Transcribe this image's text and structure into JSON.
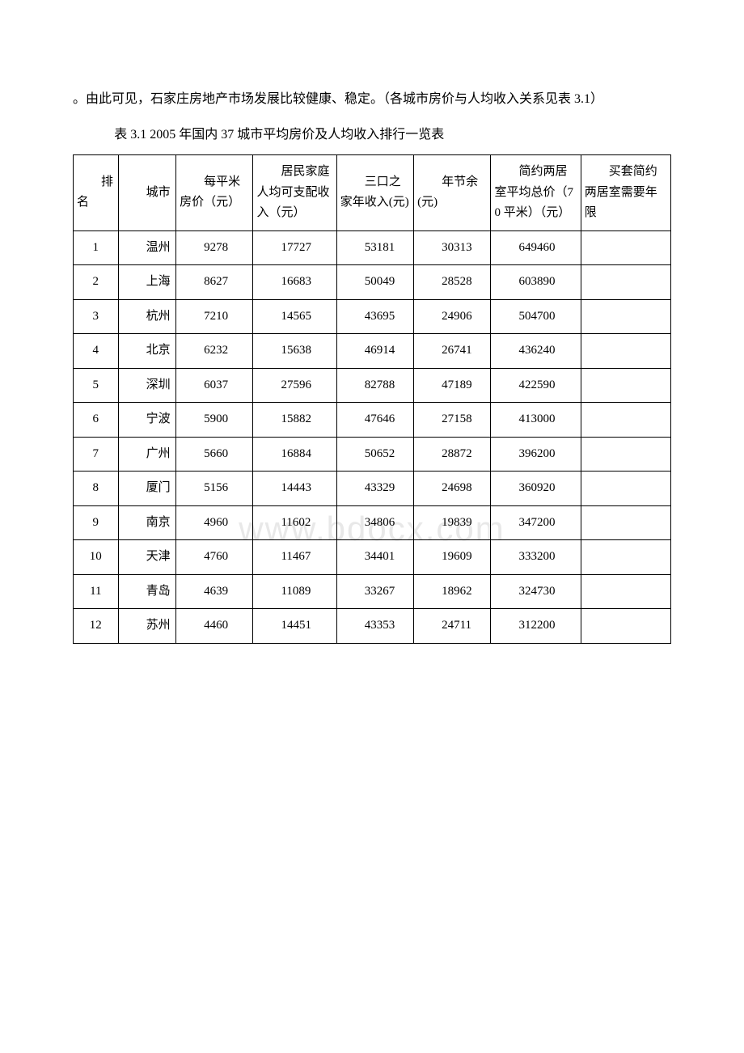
{
  "intro": {
    "line": "。由此可见，石家庄房地产市场发展比较健康、稳定。（各城市房价与人均收入关系见表 3.1）"
  },
  "table": {
    "title": "表 3.1 2005 年国内 37 城市平均房价及人均收入排行一览表",
    "headers": {
      "rank": "排名",
      "city": "城市",
      "price": "每平米房价（元）",
      "income": "居民家庭人均可支配收入（元）",
      "family": "三口之家年收入(元)",
      "save": "年节余(元)",
      "total": "简约两居室平均总价（70 平米）（元）",
      "years": "买套简约两居室需要年限"
    },
    "rows": [
      {
        "rank": "1",
        "city": "温州",
        "price": "9278",
        "income": "17727",
        "family": "53181",
        "save": "30313",
        "total": "649460",
        "years": ""
      },
      {
        "rank": "2",
        "city": "上海",
        "price": "8627",
        "income": "16683",
        "family": "50049",
        "save": "28528",
        "total": "603890",
        "years": ""
      },
      {
        "rank": "3",
        "city": "杭州",
        "price": "7210",
        "income": "14565",
        "family": "43695",
        "save": "24906",
        "total": "504700",
        "years": ""
      },
      {
        "rank": "4",
        "city": "北京",
        "price": "6232",
        "income": "15638",
        "family": "46914",
        "save": "26741",
        "total": "436240",
        "years": ""
      },
      {
        "rank": "5",
        "city": "深圳",
        "price": "6037",
        "income": "27596",
        "family": "82788",
        "save": "47189",
        "total": "422590",
        "years": ""
      },
      {
        "rank": "6",
        "city": "宁波",
        "price": "5900",
        "income": "15882",
        "family": "47646",
        "save": "27158",
        "total": "413000",
        "years": ""
      },
      {
        "rank": "7",
        "city": "广州",
        "price": "5660",
        "income": "16884",
        "family": "50652",
        "save": "28872",
        "total": "396200",
        "years": ""
      },
      {
        "rank": "8",
        "city": "厦门",
        "price": "5156",
        "income": "14443",
        "family": "43329",
        "save": "24698",
        "total": "360920",
        "years": ""
      },
      {
        "rank": "9",
        "city": "南京",
        "price": "4960",
        "income": "11602",
        "family": "34806",
        "save": "19839",
        "total": "347200",
        "years": ""
      },
      {
        "rank": "10",
        "city": "天津",
        "price": "4760",
        "income": "11467",
        "family": "34401",
        "save": "19609",
        "total": "333200",
        "years": ""
      },
      {
        "rank": "11",
        "city": "青岛",
        "price": "4639",
        "income": "11089",
        "family": "33267",
        "save": "18962",
        "total": "324730",
        "years": ""
      },
      {
        "rank": "12",
        "city": "苏州",
        "price": "4460",
        "income": "14451",
        "family": "43353",
        "save": "24711",
        "total": "312200",
        "years": ""
      }
    ]
  },
  "watermark": "www.bdocx.com",
  "style": {
    "background_color": "#ffffff",
    "text_color": "#000000",
    "border_color": "#000000",
    "watermark_color": "#e8e8e8",
    "body_font_size": 16,
    "cell_font_size": 15
  }
}
